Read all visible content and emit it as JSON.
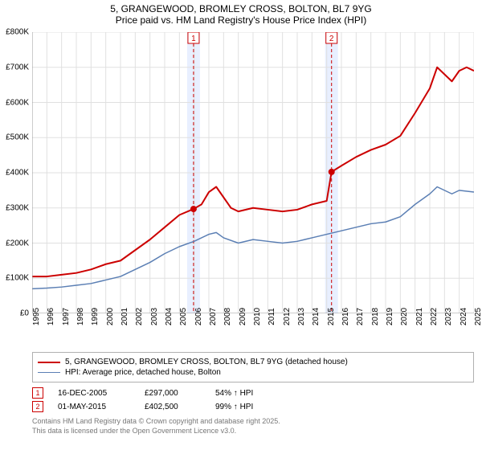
{
  "title": {
    "line1": "5, GRANGEWOOD, BROMLEY CROSS, BOLTON, BL7 9YG",
    "line2": "Price paid vs. HM Land Registry's House Price Index (HPI)",
    "fontsize": 12,
    "color": "#000000"
  },
  "chart": {
    "type": "line",
    "background_color": "#ffffff",
    "grid_color": "#e0e0e0",
    "axis_color": "#999999",
    "x": {
      "min": 1995,
      "max": 2025,
      "tick_step": 1,
      "labels": [
        "1995",
        "1996",
        "1997",
        "1998",
        "1999",
        "2000",
        "2001",
        "2002",
        "2003",
        "2004",
        "2005",
        "2006",
        "2007",
        "2008",
        "2009",
        "2010",
        "2011",
        "2012",
        "2013",
        "2014",
        "2015",
        "2016",
        "2017",
        "2018",
        "2019",
        "2020",
        "2021",
        "2022",
        "2023",
        "2024",
        "2025"
      ],
      "label_fontsize": 10,
      "rotation": -90
    },
    "y": {
      "min": 0,
      "max": 800000,
      "tick_step": 100000,
      "labels": [
        "£0",
        "£100K",
        "£200K",
        "£300K",
        "£400K",
        "£500K",
        "£600K",
        "£700K",
        "£800K"
      ],
      "label_fontsize": 10
    },
    "series": [
      {
        "name": "5, GRANGEWOOD, BROMLEY CROSS, BOLTON, BL7 9YG (detached house)",
        "color": "#cc0000",
        "line_width": 2,
        "points": [
          [
            1995,
            105000
          ],
          [
            1996,
            105000
          ],
          [
            1997,
            110000
          ],
          [
            1998,
            115000
          ],
          [
            1999,
            125000
          ],
          [
            2000,
            140000
          ],
          [
            2001,
            150000
          ],
          [
            2002,
            180000
          ],
          [
            2003,
            210000
          ],
          [
            2004,
            245000
          ],
          [
            2005,
            280000
          ],
          [
            2005.96,
            297000
          ],
          [
            2006.5,
            310000
          ],
          [
            2007,
            345000
          ],
          [
            2007.5,
            360000
          ],
          [
            2008,
            330000
          ],
          [
            2008.5,
            300000
          ],
          [
            2009,
            290000
          ],
          [
            2010,
            300000
          ],
          [
            2011,
            295000
          ],
          [
            2012,
            290000
          ],
          [
            2013,
            295000
          ],
          [
            2014,
            310000
          ],
          [
            2015,
            320000
          ],
          [
            2015.33,
            402500
          ],
          [
            2016,
            420000
          ],
          [
            2017,
            445000
          ],
          [
            2018,
            465000
          ],
          [
            2019,
            480000
          ],
          [
            2020,
            505000
          ],
          [
            2021,
            570000
          ],
          [
            2022,
            640000
          ],
          [
            2022.5,
            700000
          ],
          [
            2023,
            680000
          ],
          [
            2023.5,
            660000
          ],
          [
            2024,
            690000
          ],
          [
            2024.5,
            700000
          ],
          [
            2025,
            690000
          ]
        ],
        "markers": [
          {
            "x": 2005.96,
            "y": 297000,
            "size": 4
          },
          {
            "x": 2015.33,
            "y": 402500,
            "size": 4
          }
        ]
      },
      {
        "name": "HPI: Average price, detached house, Bolton",
        "color": "#5b7fb4",
        "line_width": 1.5,
        "points": [
          [
            1995,
            70000
          ],
          [
            1996,
            72000
          ],
          [
            1997,
            75000
          ],
          [
            1998,
            80000
          ],
          [
            1999,
            85000
          ],
          [
            2000,
            95000
          ],
          [
            2001,
            105000
          ],
          [
            2002,
            125000
          ],
          [
            2003,
            145000
          ],
          [
            2004,
            170000
          ],
          [
            2005,
            190000
          ],
          [
            2006,
            205000
          ],
          [
            2007,
            225000
          ],
          [
            2007.5,
            230000
          ],
          [
            2008,
            215000
          ],
          [
            2009,
            200000
          ],
          [
            2010,
            210000
          ],
          [
            2011,
            205000
          ],
          [
            2012,
            200000
          ],
          [
            2013,
            205000
          ],
          [
            2014,
            215000
          ],
          [
            2015,
            225000
          ],
          [
            2016,
            235000
          ],
          [
            2017,
            245000
          ],
          [
            2018,
            255000
          ],
          [
            2019,
            260000
          ],
          [
            2020,
            275000
          ],
          [
            2021,
            310000
          ],
          [
            2022,
            340000
          ],
          [
            2022.5,
            360000
          ],
          [
            2023,
            350000
          ],
          [
            2023.5,
            340000
          ],
          [
            2024,
            350000
          ],
          [
            2025,
            345000
          ]
        ]
      }
    ],
    "event_bands": [
      {
        "x": 2005.96,
        "label": "1",
        "color": "#cc0000",
        "band_color": "#e8efff",
        "dash": "4,3"
      },
      {
        "x": 2015.33,
        "label": "2",
        "color": "#cc0000",
        "band_color": "#e8efff",
        "dash": "4,3"
      }
    ]
  },
  "legend": {
    "border_color": "#b0b0b0",
    "fontsize": 10,
    "items": [
      {
        "color": "#cc0000",
        "width": 2,
        "label": "5, GRANGEWOOD, BROMLEY CROSS, BOLTON, BL7 9YG (detached house)"
      },
      {
        "color": "#5b7fb4",
        "width": 1.5,
        "label": "HPI: Average price, detached house, Bolton"
      }
    ]
  },
  "events": [
    {
      "badge": "1",
      "badge_color": "#cc0000",
      "date": "16-DEC-2005",
      "price": "£297,000",
      "delta": "54% ↑ HPI"
    },
    {
      "badge": "2",
      "badge_color": "#cc0000",
      "date": "01-MAY-2015",
      "price": "£402,500",
      "delta": "99% ↑ HPI"
    }
  ],
  "footer": {
    "line1": "Contains HM Land Registry data © Crown copyright and database right 2025.",
    "line2": "This data is licensed under the Open Government Licence v3.0.",
    "color": "#777777",
    "fontsize": 9
  }
}
